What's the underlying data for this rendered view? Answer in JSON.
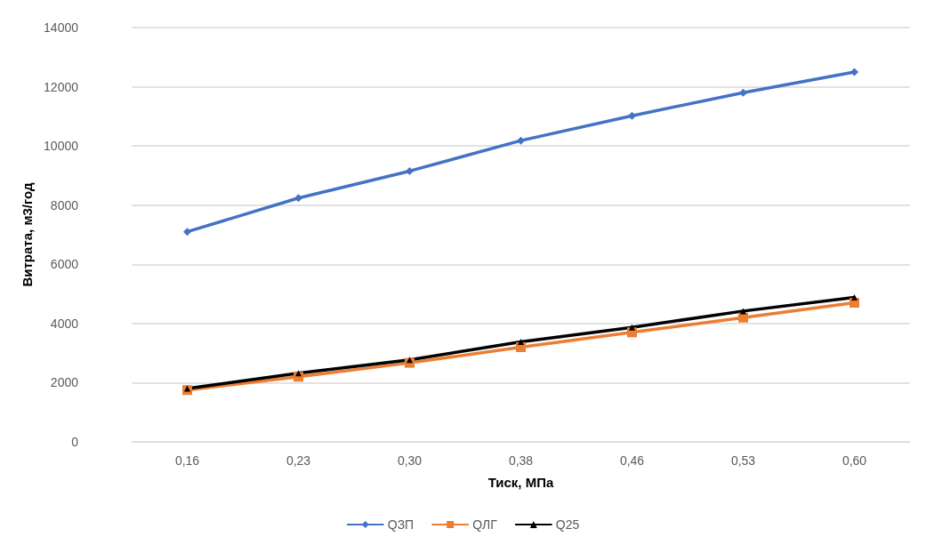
{
  "chart_data": {
    "type": "line",
    "xlabel": "Тиск, МПа",
    "ylabel": "Витрата, м3/год",
    "categories": [
      "0,16",
      "0,23",
      "0,30",
      "0,38",
      "0,46",
      "0,53",
      "0,60"
    ],
    "series": [
      {
        "name": "QЗП",
        "color": "#4472c4",
        "marker": "diamond",
        "values": [
          7100,
          8240,
          9150,
          10180,
          11020,
          11800,
          12500
        ]
      },
      {
        "name": "QЛГ",
        "color": "#ed7d31",
        "marker": "square",
        "values": [
          1750,
          2200,
          2670,
          3200,
          3700,
          4200,
          4700
        ]
      },
      {
        "name": "Q25",
        "color": "#000000",
        "marker": "triangle",
        "values": [
          1800,
          2320,
          2770,
          3380,
          3870,
          4420,
          4880
        ]
      }
    ],
    "ylim": [
      0,
      14000
    ],
    "yticks": [
      0,
      2000,
      4000,
      6000,
      8000,
      10000,
      12000,
      14000
    ],
    "grid": "y",
    "legend": "bottom",
    "line_style": "solid"
  }
}
